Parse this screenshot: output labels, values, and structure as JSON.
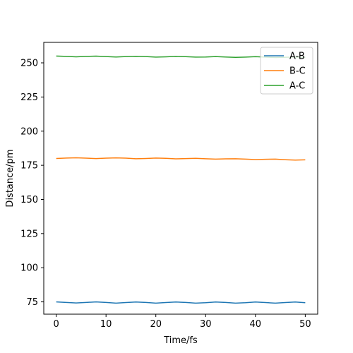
{
  "chart_data": {
    "type": "line",
    "title": "",
    "xlabel": "Time/fs",
    "ylabel": "Distance/pm",
    "xlim": [
      -2.5,
      52.5
    ],
    "ylim": [
      66,
      265
    ],
    "xticks": [
      0,
      10,
      20,
      30,
      40,
      50
    ],
    "yticks": [
      75,
      100,
      125,
      150,
      175,
      200,
      225,
      250
    ],
    "grid": false,
    "legend_position": "top-right",
    "x": [
      0,
      2,
      4,
      6,
      8,
      10,
      12,
      14,
      16,
      18,
      20,
      22,
      24,
      26,
      28,
      30,
      32,
      34,
      36,
      38,
      40,
      42,
      44,
      46,
      48,
      50
    ],
    "series": [
      {
        "name": "A-B",
        "color": "#1f77b4",
        "values": [
          75.0,
          74.6,
          74.2,
          74.6,
          75.0,
          74.6,
          74.1,
          74.5,
          74.9,
          74.6,
          74.1,
          74.5,
          74.9,
          74.6,
          74.1,
          74.4,
          74.9,
          74.6,
          74.1,
          74.4,
          74.9,
          74.5,
          74.1,
          74.5,
          74.9,
          74.4
        ]
      },
      {
        "name": "B-C",
        "color": "#ff7f0e",
        "values": [
          180.0,
          180.3,
          180.5,
          180.2,
          179.9,
          180.2,
          180.4,
          180.2,
          179.8,
          180.0,
          180.3,
          180.1,
          179.7,
          179.9,
          180.1,
          179.8,
          179.5,
          179.7,
          179.8,
          179.5,
          179.2,
          179.4,
          179.5,
          179.1,
          178.8,
          179.0
        ]
      },
      {
        "name": "A-C",
        "color": "#2ca02c",
        "values": [
          255.0,
          254.7,
          254.4,
          254.7,
          254.9,
          254.6,
          254.3,
          254.6,
          254.8,
          254.6,
          254.2,
          254.4,
          254.7,
          254.5,
          254.2,
          254.3,
          254.6,
          254.3,
          254.0,
          254.2,
          254.5,
          254.2,
          253.9,
          254.1,
          254.3,
          254.0
        ]
      }
    ]
  }
}
